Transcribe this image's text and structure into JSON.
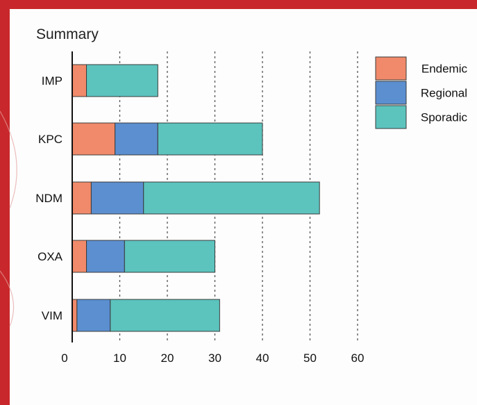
{
  "chart_data": {
    "type": "bar",
    "orientation": "horizontal",
    "stacked": true,
    "title": "Summary",
    "categories": [
      "IMP",
      "KPC",
      "NDM",
      "OXA",
      "VIM"
    ],
    "series": [
      {
        "name": "Endemic",
        "color": "#f08a6a",
        "values": [
          3,
          9,
          4,
          3,
          1
        ]
      },
      {
        "name": "Regional",
        "color": "#5b8fd0",
        "values": [
          0,
          9,
          11,
          8,
          7
        ]
      },
      {
        "name": "Sporadic",
        "color": "#5cc3bd",
        "values": [
          15,
          22,
          37,
          19,
          23
        ]
      }
    ],
    "xticks": [
      "0",
      "10",
      "20",
      "30",
      "40",
      "50",
      "60"
    ],
    "xlim": [
      0,
      60
    ],
    "grid": "vertical-dotted",
    "legend_position": "top-right"
  }
}
